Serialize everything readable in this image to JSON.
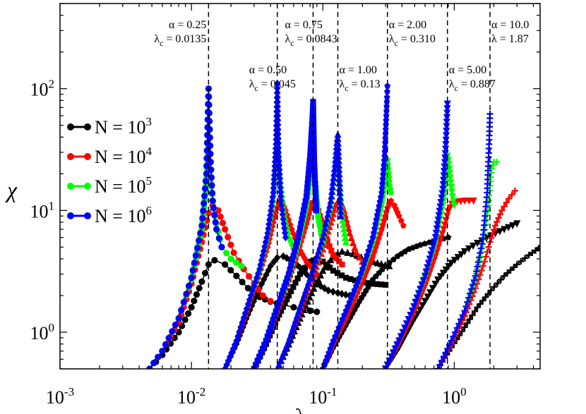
{
  "chart_data": {
    "type": "line",
    "title": "",
    "xlabel": "λ",
    "ylabel": "χ",
    "xscale": "log",
    "yscale": "log",
    "xlim": [
      0.001,
      4.5
    ],
    "ylim": [
      0.5,
      500
    ],
    "x_ticks": [
      {
        "value": 0.001,
        "base": "10",
        "exp": "-3"
      },
      {
        "value": 0.01,
        "base": "10",
        "exp": "-2"
      },
      {
        "value": 0.1,
        "base": "10",
        "exp": "-1"
      },
      {
        "value": 1,
        "base": "10",
        "exp": "0"
      }
    ],
    "y_ticks": [
      {
        "value": 1,
        "base": "10",
        "exp": "0"
      },
      {
        "value": 10,
        "base": "10",
        "exp": "1"
      },
      {
        "value": 100,
        "base": "10",
        "exp": "2"
      }
    ],
    "legend": {
      "placement": "left",
      "entries": [
        {
          "label": "N = 10",
          "exp": "3",
          "color": "#000000",
          "key": "N1e3"
        },
        {
          "label": "N = 10",
          "exp": "4",
          "color": "#ff0000",
          "key": "N1e4"
        },
        {
          "label": "N = 10",
          "exp": "5",
          "color": "#00ff00",
          "key": "N1e5"
        },
        {
          "label": "N = 10",
          "exp": "6",
          "color": "#0000ff",
          "key": "N1e6"
        }
      ]
    },
    "critical_lines": [
      {
        "alpha_text": "α = 0.25",
        "lambda_prefix": "λ",
        "lambda_sub": "c",
        "lambda_text": " = 0.0135",
        "x": 0.0135,
        "tier": "top",
        "anchor": "end"
      },
      {
        "alpha_text": "α = 0.50",
        "lambda_prefix": "λ",
        "lambda_sub": "c",
        "lambda_text": " = 0.045",
        "x": 0.045,
        "tier": "mid",
        "anchor": "middle"
      },
      {
        "alpha_text": "α = 0.75",
        "lambda_prefix": "λ",
        "lambda_sub": "c",
        "lambda_text": " = 0.0843",
        "x": 0.0843,
        "tier": "top",
        "anchor": "middle"
      },
      {
        "alpha_text": "α = 1.00",
        "lambda_prefix": "λ",
        "lambda_sub": "c",
        "lambda_text": " = 0.13",
        "x": 0.13,
        "tier": "mid",
        "anchor": "start"
      },
      {
        "alpha_text": "α = 2.00",
        "lambda_prefix": "λ",
        "lambda_sub": "c",
        "lambda_text": " = 0.310",
        "x": 0.31,
        "tier": "top",
        "anchor": "start"
      },
      {
        "alpha_text": "α = 5.00",
        "lambda_prefix": "λ",
        "lambda_sub": "c",
        "lambda_text": " = 0.887",
        "x": 0.887,
        "tier": "mid",
        "anchor": "start"
      },
      {
        "alpha_text": "α = 10.0",
        "lambda_prefix": "λ",
        "lambda_sub": "",
        "lambda_text": " = 1.87",
        "x": 1.87,
        "tier": "top",
        "anchor": "start"
      }
    ],
    "series": [
      {
        "alpha": "0.25",
        "N": "N1e3",
        "color": "#000000",
        "marker": "circle",
        "x": [
          0.0048,
          0.006,
          0.008,
          0.01,
          0.012,
          0.0135,
          0.015,
          0.018,
          0.022,
          0.027,
          0.033,
          0.04,
          0.05,
          0.06,
          0.07,
          0.08,
          0.09
        ],
        "y": [
          0.5,
          0.65,
          1.0,
          1.6,
          2.6,
          3.6,
          3.9,
          3.6,
          2.9,
          2.3,
          1.95,
          1.78,
          1.68,
          1.6,
          1.55,
          1.5,
          1.47
        ]
      },
      {
        "alpha": "0.25",
        "N": "N1e4",
        "color": "#ff0000",
        "marker": "circle",
        "x": [
          0.0048,
          0.006,
          0.008,
          0.01,
          0.012,
          0.0135,
          0.0145,
          0.016,
          0.018,
          0.021,
          0.025,
          0.03,
          0.035,
          0.04
        ],
        "y": [
          0.5,
          0.7,
          1.2,
          2.5,
          5.5,
          9.5,
          11.0,
          10.0,
          7.0,
          4.5,
          3.3,
          2.5,
          2.0,
          1.8
        ]
      },
      {
        "alpha": "0.25",
        "N": "N1e5",
        "color": "#00ff00",
        "marker": "circle",
        "x": [
          0.0048,
          0.006,
          0.008,
          0.01,
          0.012,
          0.013,
          0.0135,
          0.014,
          0.015,
          0.017,
          0.02,
          0.024
        ],
        "y": [
          0.5,
          0.7,
          1.3,
          2.7,
          7.0,
          16.0,
          33.0,
          18.0,
          9.0,
          5.0,
          4.0,
          3.5
        ]
      },
      {
        "alpha": "0.25",
        "N": "N1e6",
        "color": "#0000ff",
        "marker": "circle",
        "x": [
          0.0048,
          0.006,
          0.008,
          0.01,
          0.012,
          0.013,
          0.0135,
          0.014,
          0.0145,
          0.0155,
          0.017
        ],
        "y": [
          0.5,
          0.7,
          1.3,
          2.8,
          7.5,
          20.0,
          100.0,
          25.0,
          12.0,
          7.0,
          5.0
        ]
      },
      {
        "alpha": "0.50",
        "N": "N1e3",
        "color": "#000000",
        "marker": "diamond",
        "x": [
          0.018,
          0.022,
          0.027,
          0.033,
          0.04,
          0.045,
          0.05,
          0.06,
          0.075,
          0.09,
          0.11,
          0.13,
          0.16
        ],
        "y": [
          0.5,
          0.8,
          1.4,
          2.3,
          3.5,
          4.1,
          4.2,
          3.8,
          3.0,
          2.5,
          2.2,
          2.1,
          2.0
        ]
      },
      {
        "alpha": "0.50",
        "N": "N1e4",
        "color": "#ff0000",
        "marker": "diamond",
        "x": [
          0.018,
          0.022,
          0.027,
          0.033,
          0.038,
          0.042,
          0.046,
          0.048,
          0.052,
          0.058,
          0.065,
          0.075,
          0.09
        ],
        "y": [
          0.5,
          0.85,
          1.6,
          3.0,
          5.0,
          8.0,
          11.5,
          12.5,
          10.0,
          7.0,
          5.0,
          3.8,
          3.0
        ]
      },
      {
        "alpha": "0.50",
        "N": "N1e5",
        "color": "#00ff00",
        "marker": "diamond",
        "x": [
          0.018,
          0.022,
          0.027,
          0.033,
          0.038,
          0.042,
          0.044,
          0.045,
          0.047,
          0.05,
          0.055,
          0.062
        ],
        "y": [
          0.5,
          0.85,
          1.7,
          3.2,
          6.0,
          12.0,
          25.0,
          38.0,
          20.0,
          10.0,
          6.0,
          4.5
        ]
      },
      {
        "alpha": "0.50",
        "N": "N1e6",
        "color": "#0000ff",
        "marker": "diamond",
        "x": [
          0.018,
          0.022,
          0.027,
          0.033,
          0.038,
          0.042,
          0.044,
          0.045,
          0.046,
          0.048,
          0.052
        ],
        "y": [
          0.5,
          0.85,
          1.7,
          3.3,
          6.5,
          14.0,
          35.0,
          110.0,
          30.0,
          12.0,
          6.0
        ]
      },
      {
        "alpha": "0.75",
        "N": "N1e3",
        "color": "#000000",
        "marker": "square",
        "x": [
          0.03,
          0.037,
          0.045,
          0.055,
          0.067,
          0.08,
          0.09,
          0.1,
          0.12,
          0.15,
          0.19,
          0.24,
          0.3
        ],
        "y": [
          0.5,
          0.8,
          1.3,
          2.0,
          3.0,
          3.8,
          4.0,
          3.8,
          3.2,
          2.8,
          2.6,
          2.5,
          2.45
        ]
      },
      {
        "alpha": "0.75",
        "N": "N1e4",
        "color": "#ff0000",
        "marker": "square",
        "x": [
          0.03,
          0.037,
          0.045,
          0.055,
          0.065,
          0.075,
          0.082,
          0.088,
          0.095,
          0.105,
          0.12,
          0.14
        ],
        "y": [
          0.5,
          0.85,
          1.5,
          2.7,
          4.8,
          8.0,
          11.5,
          12.0,
          9.0,
          6.0,
          4.3,
          3.6
        ]
      },
      {
        "alpha": "0.75",
        "N": "N1e5",
        "color": "#00ff00",
        "marker": "square",
        "x": [
          0.03,
          0.037,
          0.045,
          0.055,
          0.065,
          0.075,
          0.08,
          0.0843,
          0.087,
          0.092,
          0.1
        ],
        "y": [
          0.5,
          0.85,
          1.6,
          2.9,
          5.5,
          11.0,
          20.0,
          35.0,
          18.0,
          9.0,
          5.5
        ]
      },
      {
        "alpha": "0.75",
        "N": "N1e6",
        "color": "#0000ff",
        "marker": "square",
        "x": [
          0.03,
          0.037,
          0.045,
          0.055,
          0.065,
          0.075,
          0.08,
          0.0835,
          0.0843,
          0.086,
          0.089
        ],
        "y": [
          0.5,
          0.85,
          1.6,
          3.0,
          6.0,
          13.0,
          28.0,
          60.0,
          78.0,
          25.0,
          10.0
        ]
      },
      {
        "alpha": "1.00",
        "N": "N1e3",
        "color": "#000000",
        "marker": "triangle",
        "x": [
          0.045,
          0.055,
          0.067,
          0.082,
          0.1,
          0.12,
          0.14,
          0.17,
          0.21,
          0.26,
          0.32
        ],
        "y": [
          0.5,
          0.8,
          1.3,
          2.1,
          3.2,
          4.2,
          4.6,
          4.4,
          4.0,
          3.7,
          3.5
        ]
      },
      {
        "alpha": "1.00",
        "N": "N1e4",
        "color": "#ff0000",
        "marker": "triangle",
        "x": [
          0.045,
          0.055,
          0.067,
          0.082,
          0.1,
          0.115,
          0.125,
          0.135,
          0.145,
          0.16,
          0.18,
          0.21
        ],
        "y": [
          0.5,
          0.85,
          1.5,
          2.7,
          4.8,
          8.0,
          11.0,
          12.5,
          10.0,
          6.5,
          4.5,
          3.5
        ]
      },
      {
        "alpha": "1.00",
        "N": "N1e5",
        "color": "#00ff00",
        "marker": "triangle",
        "x": [
          0.045,
          0.055,
          0.067,
          0.082,
          0.1,
          0.115,
          0.124,
          0.13,
          0.134,
          0.14,
          0.15
        ],
        "y": [
          0.5,
          0.85,
          1.6,
          3.0,
          5.5,
          11.0,
          22.0,
          36.0,
          18.0,
          9.0,
          5.5
        ]
      },
      {
        "alpha": "1.00",
        "N": "N1e6",
        "color": "#0000ff",
        "marker": "triangle",
        "x": [
          0.045,
          0.055,
          0.067,
          0.082,
          0.1,
          0.115,
          0.124,
          0.128,
          0.13,
          0.133,
          0.137
        ],
        "y": [
          0.5,
          0.85,
          1.6,
          3.0,
          6.0,
          12.0,
          24.0,
          36.0,
          42.0,
          20.0,
          9.0
        ]
      },
      {
        "alpha": "2.00",
        "N": "N1e3",
        "color": "#000000",
        "marker": "pentagon",
        "x": [
          0.1,
          0.12,
          0.15,
          0.19,
          0.24,
          0.3,
          0.37,
          0.45,
          0.55,
          0.7,
          0.9
        ],
        "y": [
          0.5,
          0.75,
          1.15,
          1.8,
          2.7,
          3.5,
          4.2,
          4.8,
          5.2,
          5.6,
          6.0
        ]
      },
      {
        "alpha": "2.00",
        "N": "N1e4",
        "color": "#ff0000",
        "marker": "pentagon",
        "x": [
          0.1,
          0.12,
          0.15,
          0.19,
          0.24,
          0.28,
          0.31,
          0.33,
          0.35,
          0.38,
          0.41
        ],
        "y": [
          0.5,
          0.8,
          1.3,
          2.3,
          4.2,
          7.0,
          10.5,
          12.0,
          11.0,
          9.0,
          7.5
        ]
      },
      {
        "alpha": "2.00",
        "N": "N1e5",
        "color": "#00ff00",
        "marker": "pentagon",
        "x": [
          0.1,
          0.12,
          0.15,
          0.19,
          0.24,
          0.28,
          0.3,
          0.31,
          0.315,
          0.322,
          0.33
        ],
        "y": [
          0.5,
          0.85,
          1.5,
          2.7,
          5.5,
          11.0,
          18.0,
          26.0,
          22.0,
          16.0,
          14.0
        ]
      },
      {
        "alpha": "2.00",
        "N": "N1e6",
        "color": "#0000ff",
        "marker": "pentagon",
        "x": [
          0.1,
          0.12,
          0.15,
          0.19,
          0.24,
          0.28,
          0.295,
          0.303,
          0.308,
          0.31
        ],
        "y": [
          0.5,
          0.85,
          1.5,
          2.8,
          6.0,
          14.0,
          28.0,
          55.0,
          85.0,
          105.0
        ]
      },
      {
        "alpha": "5.00",
        "N": "N1e3",
        "color": "#000000",
        "marker": "triangle-down",
        "x": [
          0.3,
          0.38,
          0.48,
          0.6,
          0.75,
          0.95,
          1.2,
          1.5,
          1.9,
          2.4,
          3.0
        ],
        "y": [
          0.5,
          0.75,
          1.2,
          1.8,
          2.7,
          3.7,
          4.6,
          5.4,
          6.2,
          7.0,
          7.8
        ]
      },
      {
        "alpha": "5.00",
        "N": "N1e4",
        "color": "#ff0000",
        "marker": "triangle-down",
        "x": [
          0.3,
          0.38,
          0.48,
          0.6,
          0.72,
          0.83,
          0.9,
          0.96,
          1.05,
          1.2,
          1.4
        ],
        "y": [
          0.5,
          0.8,
          1.35,
          2.4,
          4.2,
          7.0,
          9.8,
          11.3,
          11.8,
          12.0,
          12.0
        ]
      },
      {
        "alpha": "5.00",
        "N": "N1e5",
        "color": "#00ff00",
        "marker": "triangle-down",
        "x": [
          0.3,
          0.38,
          0.48,
          0.6,
          0.72,
          0.83,
          0.87,
          0.887,
          0.91,
          0.94,
          0.97,
          1.0
        ],
        "y": [
          0.5,
          0.85,
          1.5,
          2.8,
          5.5,
          12.0,
          20.0,
          28.0,
          24.0,
          17.0,
          13.0,
          11.0
        ]
      },
      {
        "alpha": "5.00",
        "N": "N1e6",
        "color": "#0000ff",
        "marker": "triangle-down",
        "x": [
          0.3,
          0.38,
          0.48,
          0.6,
          0.72,
          0.82,
          0.86,
          0.88,
          0.887
        ],
        "y": [
          0.5,
          0.85,
          1.5,
          2.9,
          6.0,
          15.0,
          32.0,
          58.0,
          75.0
        ]
      },
      {
        "alpha": "10.0",
        "N": "N1e3",
        "color": "#000000",
        "marker": "star",
        "x": [
          0.75,
          0.95,
          1.2,
          1.5,
          1.9,
          2.4,
          3.0,
          3.7,
          4.4
        ],
        "y": [
          0.5,
          0.75,
          1.1,
          1.6,
          2.2,
          2.9,
          3.6,
          4.3,
          4.9
        ]
      },
      {
        "alpha": "10.0",
        "N": "N1e4",
        "color": "#ff0000",
        "marker": "star",
        "x": [
          0.75,
          0.95,
          1.2,
          1.45,
          1.7,
          1.87,
          2.05,
          2.3,
          2.6,
          2.9
        ],
        "y": [
          0.5,
          0.8,
          1.35,
          2.3,
          3.8,
          5.5,
          7.5,
          10.0,
          12.5,
          14.5
        ]
      },
      {
        "alpha": "10.0",
        "N": "N1e5",
        "color": "#00ff00",
        "marker": "star",
        "x": [
          0.75,
          0.95,
          1.2,
          1.45,
          1.65,
          1.8,
          1.87,
          1.92,
          2.0,
          2.1
        ],
        "y": [
          0.5,
          0.85,
          1.5,
          2.8,
          5.3,
          10.0,
          16.0,
          22.0,
          25.0,
          25.0
        ]
      },
      {
        "alpha": "10.0",
        "N": "N1e6",
        "color": "#0000ff",
        "marker": "star",
        "x": [
          0.75,
          0.95,
          1.2,
          1.45,
          1.65,
          1.78,
          1.84,
          1.87
        ],
        "y": [
          0.5,
          0.85,
          1.5,
          2.9,
          5.8,
          14.0,
          35.0,
          62.0
        ]
      }
    ]
  }
}
